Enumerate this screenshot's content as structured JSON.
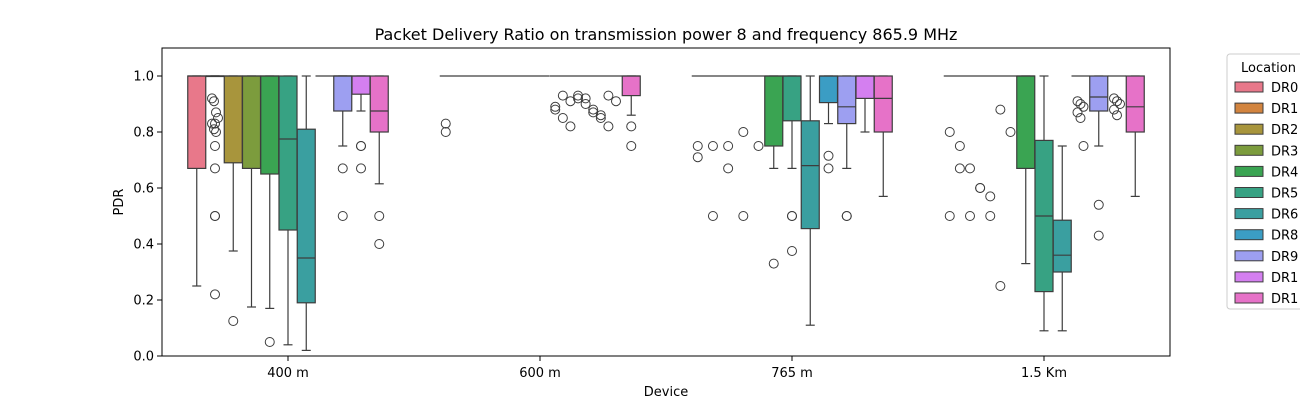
{
  "chart_data": {
    "type": "box",
    "title": "Packet Delivery Ratio on transmission power 8 and frequency 865.9 MHz",
    "xlabel": "Device",
    "ylabel": "PDR",
    "ylim": [
      0,
      1.1
    ],
    "yticks": [
      0.0,
      0.2,
      0.4,
      0.6,
      0.8,
      1.0
    ],
    "grid": false,
    "categories": [
      "400 m",
      "600 m",
      "765 m",
      "1.5 Km"
    ],
    "legend": {
      "title": "Location",
      "placement": "outside-right",
      "entries": [
        "DR0",
        "DR1",
        "DR2",
        "DR3",
        "DR4",
        "DR5",
        "DR6",
        "DR8",
        "DR9",
        "DR1",
        "DR1"
      ]
    },
    "colors": [
      "#e8788a",
      "#d2843f",
      "#a8953c",
      "#7c9c3d",
      "#3aa452",
      "#37a283",
      "#3a9fa0",
      "#3b9dc4",
      "#9d9ff1",
      "#d47ff0",
      "#e672c8"
    ],
    "series": [
      {
        "name": "DR0",
        "boxes": [
          {
            "cat": "400 m",
            "q1": 0.67,
            "med": 1.0,
            "q3": 1.0,
            "wlo": 0.25,
            "whi": 1.0,
            "outliers": []
          }
        ]
      },
      {
        "name": "DR1",
        "boxes": [
          {
            "cat": "400 m",
            "q1": 1.0,
            "med": 1.0,
            "q3": 1.0,
            "wlo": 1.0,
            "whi": 1.0,
            "outliers": [
              0.83,
              0.75,
              0.67,
              0.5,
              0.5,
              0.22
            ]
          }
        ]
      },
      {
        "name": "DR2",
        "boxes": [
          {
            "cat": "400 m",
            "q1": 0.69,
            "med": 1.0,
            "q3": 1.0,
            "wlo": 0.375,
            "whi": 1.0,
            "outliers": [
              0.125
            ]
          }
        ]
      },
      {
        "name": "DR3",
        "boxes": [
          {
            "cat": "400 m",
            "q1": 0.67,
            "med": 1.0,
            "q3": 1.0,
            "wlo": 0.175,
            "whi": 1.0,
            "outliers": []
          }
        ]
      },
      {
        "name": "DR4",
        "boxes": [
          {
            "cat": "400 m",
            "q1": 0.65,
            "med": 1.0,
            "q3": 1.0,
            "wlo": 0.17,
            "whi": 1.0,
            "outliers": [
              0.05
            ]
          },
          {
            "cat": "765 m",
            "q1": 0.75,
            "med": 1.0,
            "q3": 1.0,
            "wlo": 0.67,
            "whi": 1.0,
            "outliers": [
              0.33
            ]
          },
          {
            "cat": "1.5 Km",
            "q1": 0.67,
            "med": 1.0,
            "q3": 1.0,
            "wlo": 0.33,
            "whi": 1.0,
            "outliers": []
          }
        ]
      },
      {
        "name": "DR5",
        "boxes": [
          {
            "cat": "400 m",
            "q1": 0.45,
            "med": 0.775,
            "q3": 1.0,
            "wlo": 0.04,
            "whi": 1.0,
            "outliers": []
          },
          {
            "cat": "765 m",
            "q1": 0.84,
            "med": 1.0,
            "q3": 1.0,
            "wlo": 0.67,
            "whi": 1.0,
            "outliers": [
              0.5,
              0.5,
              0.375
            ]
          },
          {
            "cat": "1.5 Km",
            "q1": 0.23,
            "med": 0.5,
            "q3": 0.77,
            "wlo": 0.09,
            "whi": 1.0,
            "outliers": []
          }
        ]
      },
      {
        "name": "DR6",
        "boxes": [
          {
            "cat": "400 m",
            "q1": 0.19,
            "med": 0.35,
            "q3": 0.81,
            "wlo": 0.02,
            "whi": 1.0,
            "outliers": []
          },
          {
            "cat": "765 m",
            "q1": 0.455,
            "med": 0.68,
            "q3": 0.84,
            "wlo": 0.11,
            "whi": 1.0,
            "outliers": []
          },
          {
            "cat": "1.5 Km",
            "q1": 0.3,
            "med": 0.36,
            "q3": 0.485,
            "wlo": 0.09,
            "whi": 0.75,
            "outliers": []
          }
        ]
      },
      {
        "name": "DR8",
        "boxes": [
          {
            "cat": "765 m",
            "q1": 0.905,
            "med": 1.0,
            "q3": 1.0,
            "wlo": 0.83,
            "whi": 1.0,
            "outliers": [
              0.715,
              0.67
            ]
          }
        ]
      },
      {
        "name": "DR9",
        "boxes": [
          {
            "cat": "400 m",
            "q1": 0.875,
            "med": 1.0,
            "q3": 1.0,
            "wlo": 0.75,
            "whi": 1.0,
            "outliers": [
              0.67,
              0.5
            ]
          },
          {
            "cat": "765 m",
            "q1": 0.83,
            "med": 0.89,
            "q3": 1.0,
            "wlo": 0.67,
            "whi": 1.0,
            "outliers": [
              0.5,
              0.5
            ]
          },
          {
            "cat": "1.5 Km",
            "q1": 0.875,
            "med": 0.925,
            "q3": 1.0,
            "wlo": 0.75,
            "whi": 1.0,
            "outliers": [
              0.54,
              0.43
            ]
          }
        ]
      },
      {
        "name": "DR1",
        "boxes": [
          {
            "cat": "400 m",
            "q1": 0.935,
            "med": 1.0,
            "q3": 1.0,
            "wlo": 0.875,
            "whi": 1.0,
            "outliers": [
              0.75,
              0.75,
              0.67
            ]
          },
          {
            "cat": "765 m",
            "q1": 0.92,
            "med": 1.0,
            "q3": 1.0,
            "wlo": 0.8,
            "whi": 1.0,
            "outliers": []
          }
        ]
      },
      {
        "name": "DR1",
        "boxes": [
          {
            "cat": "400 m",
            "q1": 0.8,
            "med": 0.875,
            "q3": 1.0,
            "wlo": 0.615,
            "whi": 1.0,
            "outliers": [
              0.5,
              0.4
            ]
          },
          {
            "cat": "600 m",
            "q1": 0.93,
            "med": 1.0,
            "q3": 1.0,
            "wlo": 0.86,
            "whi": 1.0,
            "outliers": [
              0.82,
              0.75
            ]
          },
          {
            "cat": "765 m",
            "q1": 0.8,
            "med": 0.92,
            "q3": 1.0,
            "wlo": 0.57,
            "whi": 1.0,
            "outliers": []
          },
          {
            "cat": "1.5 Km",
            "q1": 0.8,
            "med": 0.89,
            "q3": 1.0,
            "wlo": 0.57,
            "whi": 1.0,
            "outliers": []
          }
        ]
      }
    ],
    "flat_groups": [
      {
        "cat": "400 m",
        "from": 1,
        "to": 1,
        "value": 1.0,
        "outliers": [
          0.92,
          0.91,
          0.87,
          0.85,
          0.83,
          0.81,
          0.8
        ]
      },
      {
        "cat": "400 m",
        "from": 7,
        "to": 8,
        "value": 1.0,
        "outliers": []
      },
      {
        "cat": "600 m",
        "from": 0,
        "to": 5,
        "value": 1.0,
        "outliers": [
          0.83,
          0.8
        ]
      },
      {
        "cat": "600 m",
        "from": 6,
        "to": 9,
        "value": 1.0,
        "outliers": [
          0.89,
          0.93,
          0.91,
          0.92,
          0.9,
          0.88,
          0.86,
          0.93,
          0.91,
          0.88,
          0.85,
          0.82,
          0.93,
          0.92,
          0.87,
          0.85,
          0.82
        ]
      },
      {
        "cat": "765 m",
        "from": 0,
        "to": 3,
        "value": 1.0,
        "outliers": [
          0.75,
          0.75,
          0.75,
          0.8,
          0.75,
          0.71,
          0.5,
          0.67,
          0.5
        ]
      },
      {
        "cat": "1.5 Km",
        "from": 0,
        "to": 3,
        "value": 1.0,
        "outliers": [
          0.8,
          0.75,
          0.5,
          0.6,
          0.57,
          0.88,
          0.8,
          0.5,
          0.67,
          0.67,
          0.6,
          0.5,
          0.25
        ]
      },
      {
        "cat": "1.5 Km",
        "from": 7,
        "to": 7,
        "value": 1.0,
        "outliers": [
          0.91,
          0.9,
          0.89,
          0.87,
          0.85,
          0.75
        ]
      },
      {
        "cat": "1.5 Km",
        "from": 9,
        "to": 9,
        "value": 1.0,
        "outliers": [
          0.92,
          0.91,
          0.9,
          0.88,
          0.86
        ]
      }
    ]
  }
}
